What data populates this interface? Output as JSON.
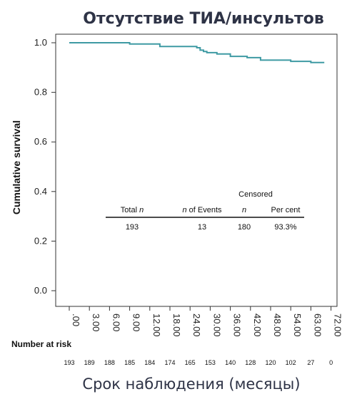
{
  "chart_data": {
    "type": "line",
    "title": "Отсутствие ТИА/инсультов",
    "ylabel": "Cumulative survival",
    "xlabel": "Срок наблюдения (месяцы)",
    "ylim": [
      0,
      1.0
    ],
    "xlim": [
      0,
      72
    ],
    "y_ticks": [
      "0.0",
      "0.2",
      "0.4",
      "0.6",
      "0.8",
      "1.0"
    ],
    "x_ticks": [
      {
        "label": ".00",
        "value": 0
      },
      {
        "label": "3.00",
        "value": 3
      },
      {
        "label": "6.00",
        "value": 6
      },
      {
        "label": "9.00",
        "value": 9
      },
      {
        "label": "12.00",
        "value": 12
      },
      {
        "label": "18.00",
        "value": 18
      },
      {
        "label": "24.00",
        "value": 24
      },
      {
        "label": "30.00",
        "value": 30
      },
      {
        "label": "36.00",
        "value": 36
      },
      {
        "label": "42.00",
        "value": 42
      },
      {
        "label": "48.00",
        "value": 48
      },
      {
        "label": "54.00",
        "value": 54
      },
      {
        "label": "63.00",
        "value": 63
      },
      {
        "label": "72.00",
        "value": 72
      }
    ],
    "series": [
      {
        "color": "#3e9aa3",
        "x": [
          0,
          6,
          9,
          15,
          26,
          27,
          28,
          29,
          32,
          36,
          41,
          45,
          54,
          63,
          66,
          69
        ],
        "y": [
          1.0,
          1.0,
          0.995,
          0.985,
          0.98,
          0.97,
          0.965,
          0.96,
          0.955,
          0.945,
          0.94,
          0.93,
          0.925,
          0.92,
          0.92,
          0.92
        ]
      }
    ],
    "grid": false
  },
  "risk_table": {
    "label": "Number at risk",
    "values": [
      "193",
      "189",
      "188",
      "185",
      "184",
      "174",
      "165",
      "153",
      "140",
      "128",
      "120",
      "102",
      "27",
      "0"
    ]
  },
  "inset_table": {
    "header_group": "Censored",
    "headers": [
      {
        "italic": "",
        "text": "Total ",
        "suffix_italic": "n"
      },
      {
        "italic": "n",
        "text": " of Events",
        "suffix_italic": ""
      },
      {
        "italic": "n",
        "text": "",
        "suffix_italic": ""
      },
      {
        "italic": "",
        "text": "Per cent",
        "suffix_italic": ""
      }
    ],
    "values": [
      "193",
      "13",
      "180",
      "93.3%"
    ]
  }
}
